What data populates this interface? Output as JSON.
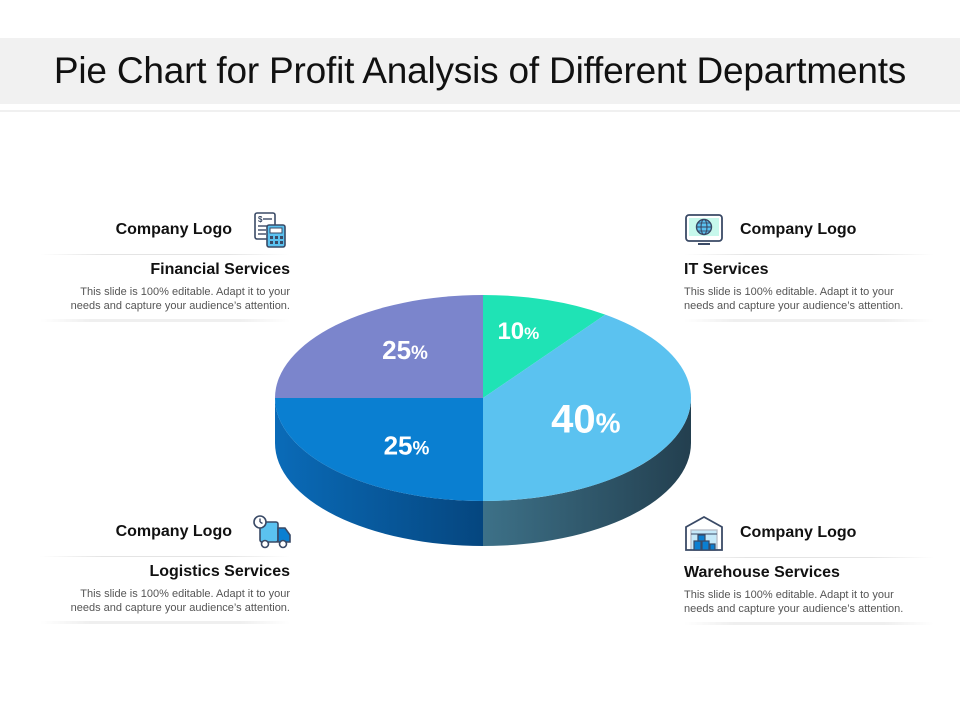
{
  "title": "Pie Chart for Profit Analysis of Different Departments",
  "colors": {
    "it": "#1fe3b5",
    "warehouse": "#5bc2f0",
    "logistics": "#0a7fd1",
    "financial": "#7b85cc",
    "side_dark": "#2d4f60",
    "side_blue": "#0a5aa3"
  },
  "chart_data": {
    "type": "pie",
    "title": "Pie Chart for Profit Analysis of Different Departments",
    "slices": [
      {
        "label": "IT Services",
        "value": 10,
        "display": "10",
        "unit": "%"
      },
      {
        "label": "Warehouse Services",
        "value": 40,
        "display": "40",
        "unit": "%"
      },
      {
        "label": "Logistics Services",
        "value": 25,
        "display": "25",
        "unit": "%"
      },
      {
        "label": "Financial Services",
        "value": 25,
        "display": "25",
        "unit": "%"
      }
    ],
    "legend": "callouts"
  },
  "blocks": {
    "financial": {
      "logo": "Company Logo",
      "heading": "Financial Services",
      "desc1": "This slide is 100% editable. Adapt it to your",
      "desc2": "needs and capture your audience’s attention.",
      "icon": "calculator-document-icon"
    },
    "it": {
      "logo": "Company Logo",
      "heading": "IT Services",
      "desc1": "This slide is 100% editable. Adapt it to your",
      "desc2": "needs and capture your audience’s attention.",
      "icon": "globe-laptop-icon"
    },
    "logistics": {
      "logo": "Company Logo",
      "heading": "Logistics Services",
      "desc1": "This slide is 100% editable. Adapt it to your",
      "desc2": "needs and capture your audience’s attention.",
      "icon": "delivery-truck-icon"
    },
    "warehouse": {
      "logo": "Company Logo",
      "heading": "Warehouse Services",
      "desc1": "This slide is 100% editable. Adapt it to your",
      "desc2": "needs and capture your audience’s attention.",
      "icon": "warehouse-icon"
    }
  }
}
